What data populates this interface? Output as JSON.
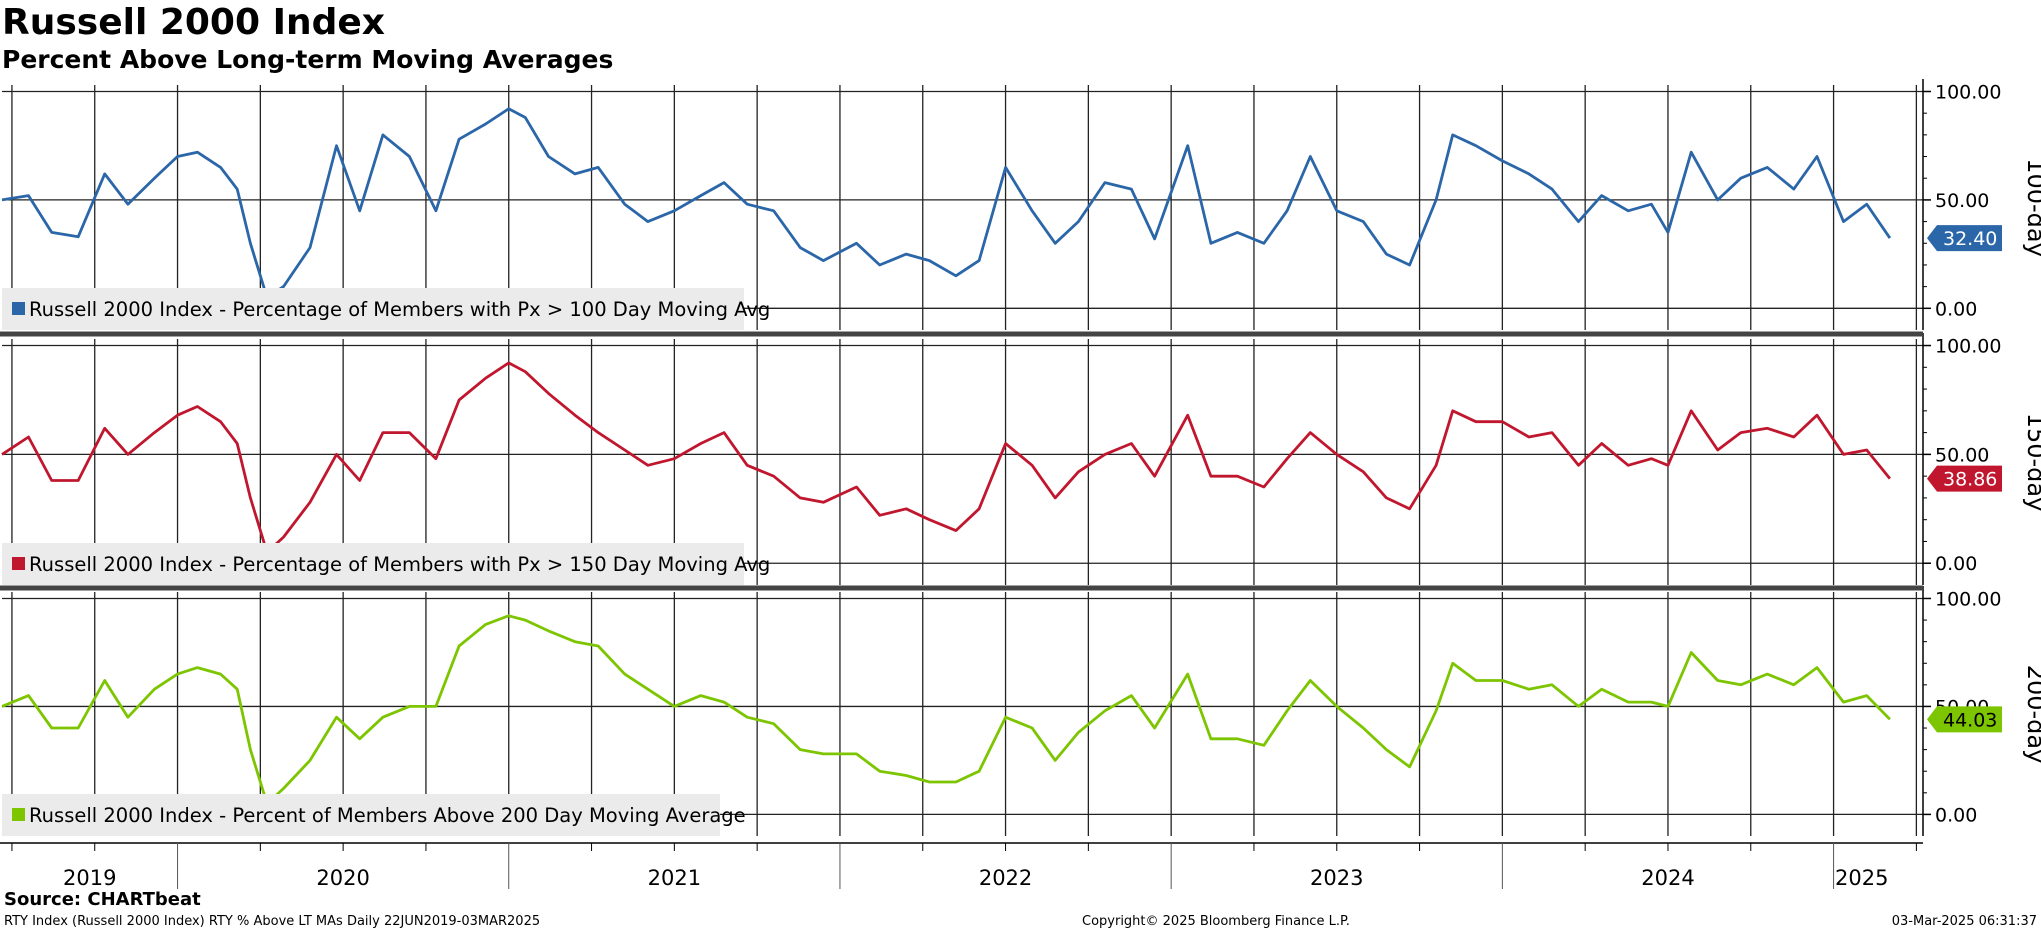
{
  "title": "Russell 2000 Index",
  "subtitle": "Percent Above Long-term Moving Averages",
  "source": "Source: CHARTbeat",
  "footer": {
    "left": "RTY Index (Russell 2000 Index) RTY % Above LT MAs  Daily 22JUN2019-03MAR2025",
    "center": "Copyright© 2025 Bloomberg Finance L.P.",
    "right": "03-Mar-2025 06:31:37"
  },
  "chart_data": {
    "type": "line",
    "x_start": 2019.47,
    "x_end": 2025.17,
    "xlim": [
      2019.47,
      2025.27
    ],
    "year_labels": [
      "2019",
      "2020",
      "2021",
      "2022",
      "2023",
      "2024",
      "2025"
    ],
    "grid": true,
    "panels": [
      {
        "name": "100-day",
        "color": "#2a66a8",
        "legend": "Russell 2000 Index - Percentage of Members with Px > 100 Day Moving Avg",
        "last_value": "32.40",
        "ylim": [
          -10,
          103
        ],
        "yticks": [
          "100.00",
          "50.00",
          "0.00"
        ],
        "x": [
          2019.47,
          2019.55,
          2019.62,
          2019.7,
          2019.78,
          2019.85,
          2019.93,
          2020.0,
          2020.06,
          2020.13,
          2020.18,
          2020.22,
          2020.27,
          2020.32,
          2020.4,
          2020.48,
          2020.55,
          2020.62,
          2020.7,
          2020.78,
          2020.85,
          2020.93,
          2021.0,
          2021.05,
          2021.12,
          2021.2,
          2021.27,
          2021.35,
          2021.42,
          2021.5,
          2021.58,
          2021.65,
          2021.72,
          2021.8,
          2021.88,
          2021.95,
          2022.05,
          2022.12,
          2022.2,
          2022.27,
          2022.35,
          2022.42,
          2022.5,
          2022.58,
          2022.65,
          2022.72,
          2022.8,
          2022.88,
          2022.95,
          2023.05,
          2023.12,
          2023.2,
          2023.28,
          2023.35,
          2023.42,
          2023.5,
          2023.58,
          2023.65,
          2023.72,
          2023.8,
          2023.85,
          2023.92,
          2024.0,
          2024.08,
          2024.15,
          2024.23,
          2024.3,
          2024.38,
          2024.45,
          2024.5,
          2024.57,
          2024.65,
          2024.72,
          2024.8,
          2024.88,
          2024.95,
          2025.03,
          2025.1,
          2025.17
        ],
        "values": [
          50,
          52,
          35,
          33,
          62,
          48,
          60,
          70,
          72,
          65,
          55,
          30,
          5,
          10,
          28,
          75,
          45,
          80,
          70,
          45,
          78,
          85,
          92,
          88,
          70,
          62,
          65,
          48,
          40,
          45,
          52,
          58,
          48,
          45,
          28,
          22,
          30,
          20,
          25,
          22,
          15,
          22,
          65,
          45,
          30,
          40,
          58,
          55,
          32,
          75,
          30,
          35,
          30,
          45,
          70,
          45,
          40,
          25,
          20,
          50,
          80,
          75,
          68,
          62,
          55,
          40,
          52,
          45,
          48,
          35,
          72,
          50,
          60,
          65,
          55,
          70,
          40,
          48,
          32.4
        ]
      },
      {
        "name": "150-day",
        "color": "#c0172f",
        "legend": "Russell 2000 Index - Percentage of Members with Px > 150 Day Moving Avg",
        "last_value": "38.86",
        "ylim": [
          -10,
          103
        ],
        "yticks": [
          "100.00",
          "50.00",
          "0.00"
        ],
        "x": [
          2019.47,
          2019.55,
          2019.62,
          2019.7,
          2019.78,
          2019.85,
          2019.93,
          2020.0,
          2020.06,
          2020.13,
          2020.18,
          2020.22,
          2020.27,
          2020.32,
          2020.4,
          2020.48,
          2020.55,
          2020.62,
          2020.7,
          2020.78,
          2020.85,
          2020.93,
          2021.0,
          2021.05,
          2021.12,
          2021.2,
          2021.27,
          2021.35,
          2021.42,
          2021.5,
          2021.58,
          2021.65,
          2021.72,
          2021.8,
          2021.88,
          2021.95,
          2022.05,
          2022.12,
          2022.2,
          2022.27,
          2022.35,
          2022.42,
          2022.5,
          2022.58,
          2022.65,
          2022.72,
          2022.8,
          2022.88,
          2022.95,
          2023.05,
          2023.12,
          2023.2,
          2023.28,
          2023.35,
          2023.42,
          2023.5,
          2023.58,
          2023.65,
          2023.72,
          2023.8,
          2023.85,
          2023.92,
          2024.0,
          2024.08,
          2024.15,
          2024.23,
          2024.3,
          2024.38,
          2024.45,
          2024.5,
          2024.57,
          2024.65,
          2024.72,
          2024.8,
          2024.88,
          2024.95,
          2025.03,
          2025.1,
          2025.17
        ],
        "values": [
          50,
          58,
          38,
          38,
          62,
          50,
          60,
          68,
          72,
          65,
          55,
          30,
          5,
          12,
          28,
          50,
          38,
          60,
          60,
          48,
          75,
          85,
          92,
          88,
          78,
          68,
          60,
          52,
          45,
          48,
          55,
          60,
          45,
          40,
          30,
          28,
          35,
          22,
          25,
          20,
          15,
          25,
          55,
          45,
          30,
          42,
          50,
          55,
          40,
          68,
          40,
          40,
          35,
          48,
          60,
          50,
          42,
          30,
          25,
          45,
          70,
          65,
          65,
          58,
          60,
          45,
          55,
          45,
          48,
          45,
          70,
          52,
          60,
          62,
          58,
          68,
          50,
          52,
          38.86
        ]
      },
      {
        "name": "200-day",
        "color": "#7cc500",
        "legend": "Russell 2000 Index - Percent of Members Above 200 Day Moving Average",
        "last_value": "44.03",
        "ylim": [
          -10,
          103
        ],
        "yticks": [
          "100.00",
          "50.00",
          "0.00"
        ],
        "x": [
          2019.47,
          2019.55,
          2019.62,
          2019.7,
          2019.78,
          2019.85,
          2019.93,
          2020.0,
          2020.06,
          2020.13,
          2020.18,
          2020.22,
          2020.27,
          2020.32,
          2020.4,
          2020.48,
          2020.55,
          2020.62,
          2020.7,
          2020.78,
          2020.85,
          2020.93,
          2021.0,
          2021.05,
          2021.12,
          2021.2,
          2021.27,
          2021.35,
          2021.42,
          2021.5,
          2021.58,
          2021.65,
          2021.72,
          2021.8,
          2021.88,
          2021.95,
          2022.05,
          2022.12,
          2022.2,
          2022.27,
          2022.35,
          2022.42,
          2022.5,
          2022.58,
          2022.65,
          2022.72,
          2022.8,
          2022.88,
          2022.95,
          2023.05,
          2023.12,
          2023.2,
          2023.28,
          2023.35,
          2023.42,
          2023.5,
          2023.58,
          2023.65,
          2023.72,
          2023.8,
          2023.85,
          2023.92,
          2024.0,
          2024.08,
          2024.15,
          2024.23,
          2024.3,
          2024.38,
          2024.45,
          2024.5,
          2024.57,
          2024.65,
          2024.72,
          2024.8,
          2024.88,
          2024.95,
          2025.03,
          2025.1,
          2025.17
        ],
        "values": [
          50,
          55,
          40,
          40,
          62,
          45,
          58,
          65,
          68,
          65,
          58,
          30,
          5,
          12,
          25,
          45,
          35,
          45,
          50,
          50,
          78,
          88,
          92,
          90,
          85,
          80,
          78,
          65,
          58,
          50,
          55,
          52,
          45,
          42,
          30,
          28,
          28,
          20,
          18,
          15,
          15,
          20,
          45,
          40,
          25,
          38,
          48,
          55,
          40,
          65,
          35,
          35,
          32,
          48,
          62,
          50,
          40,
          30,
          22,
          48,
          70,
          62,
          62,
          58,
          60,
          50,
          58,
          52,
          52,
          50,
          75,
          62,
          60,
          65,
          60,
          68,
          52,
          55,
          44.03
        ]
      }
    ]
  }
}
